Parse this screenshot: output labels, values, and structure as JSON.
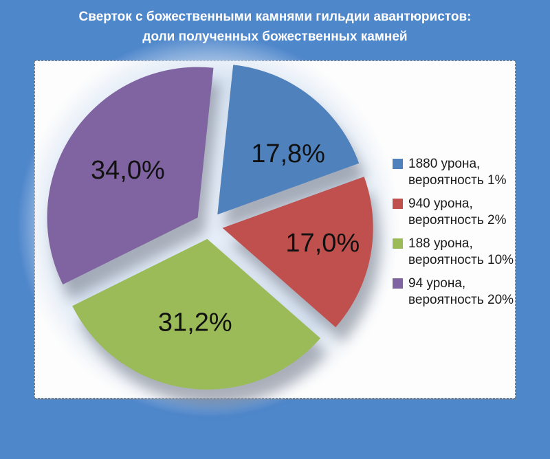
{
  "header": {
    "title_line1": "Сверток с божественными камнями гильдии авантюристов:",
    "title_line2": "доли полученных божественных камней"
  },
  "colors": {
    "page_background": "#4f87cb",
    "panel_background": "#fdfdfd",
    "title_text": "#ffffff",
    "pie_label_text": "#111111",
    "legend_text": "#1a1a1a",
    "halo": "#dde8f6"
  },
  "chart_data": {
    "type": "pie",
    "title": "Сверток с божественными камнями гильдии авантюристов: доли полученных божественных камней",
    "units": "percent",
    "direction": "clockwise",
    "start_angle_deg": 6,
    "exploded": true,
    "legend_position": "right",
    "decimal_separator": ",",
    "slices": [
      {
        "label": "17,8%",
        "value": 17.8,
        "color": "#4f81bd",
        "legend_line1": "1880 урона,",
        "legend_line2": "вероятность 1%"
      },
      {
        "label": "17,0%",
        "value": 17.0,
        "color": "#c0504d",
        "legend_line1": "940 урона,",
        "legend_line2": "вероятность 2%"
      },
      {
        "label": "31,2%",
        "value": 31.2,
        "color": "#9bbb59",
        "legend_line1": "188 урона,",
        "legend_line2": "вероятность 10%"
      },
      {
        "label": "34,0%",
        "value": 34.0,
        "color": "#8064a2",
        "legend_line1": "94 урона,",
        "legend_line2": "вероятность 20%"
      }
    ]
  }
}
